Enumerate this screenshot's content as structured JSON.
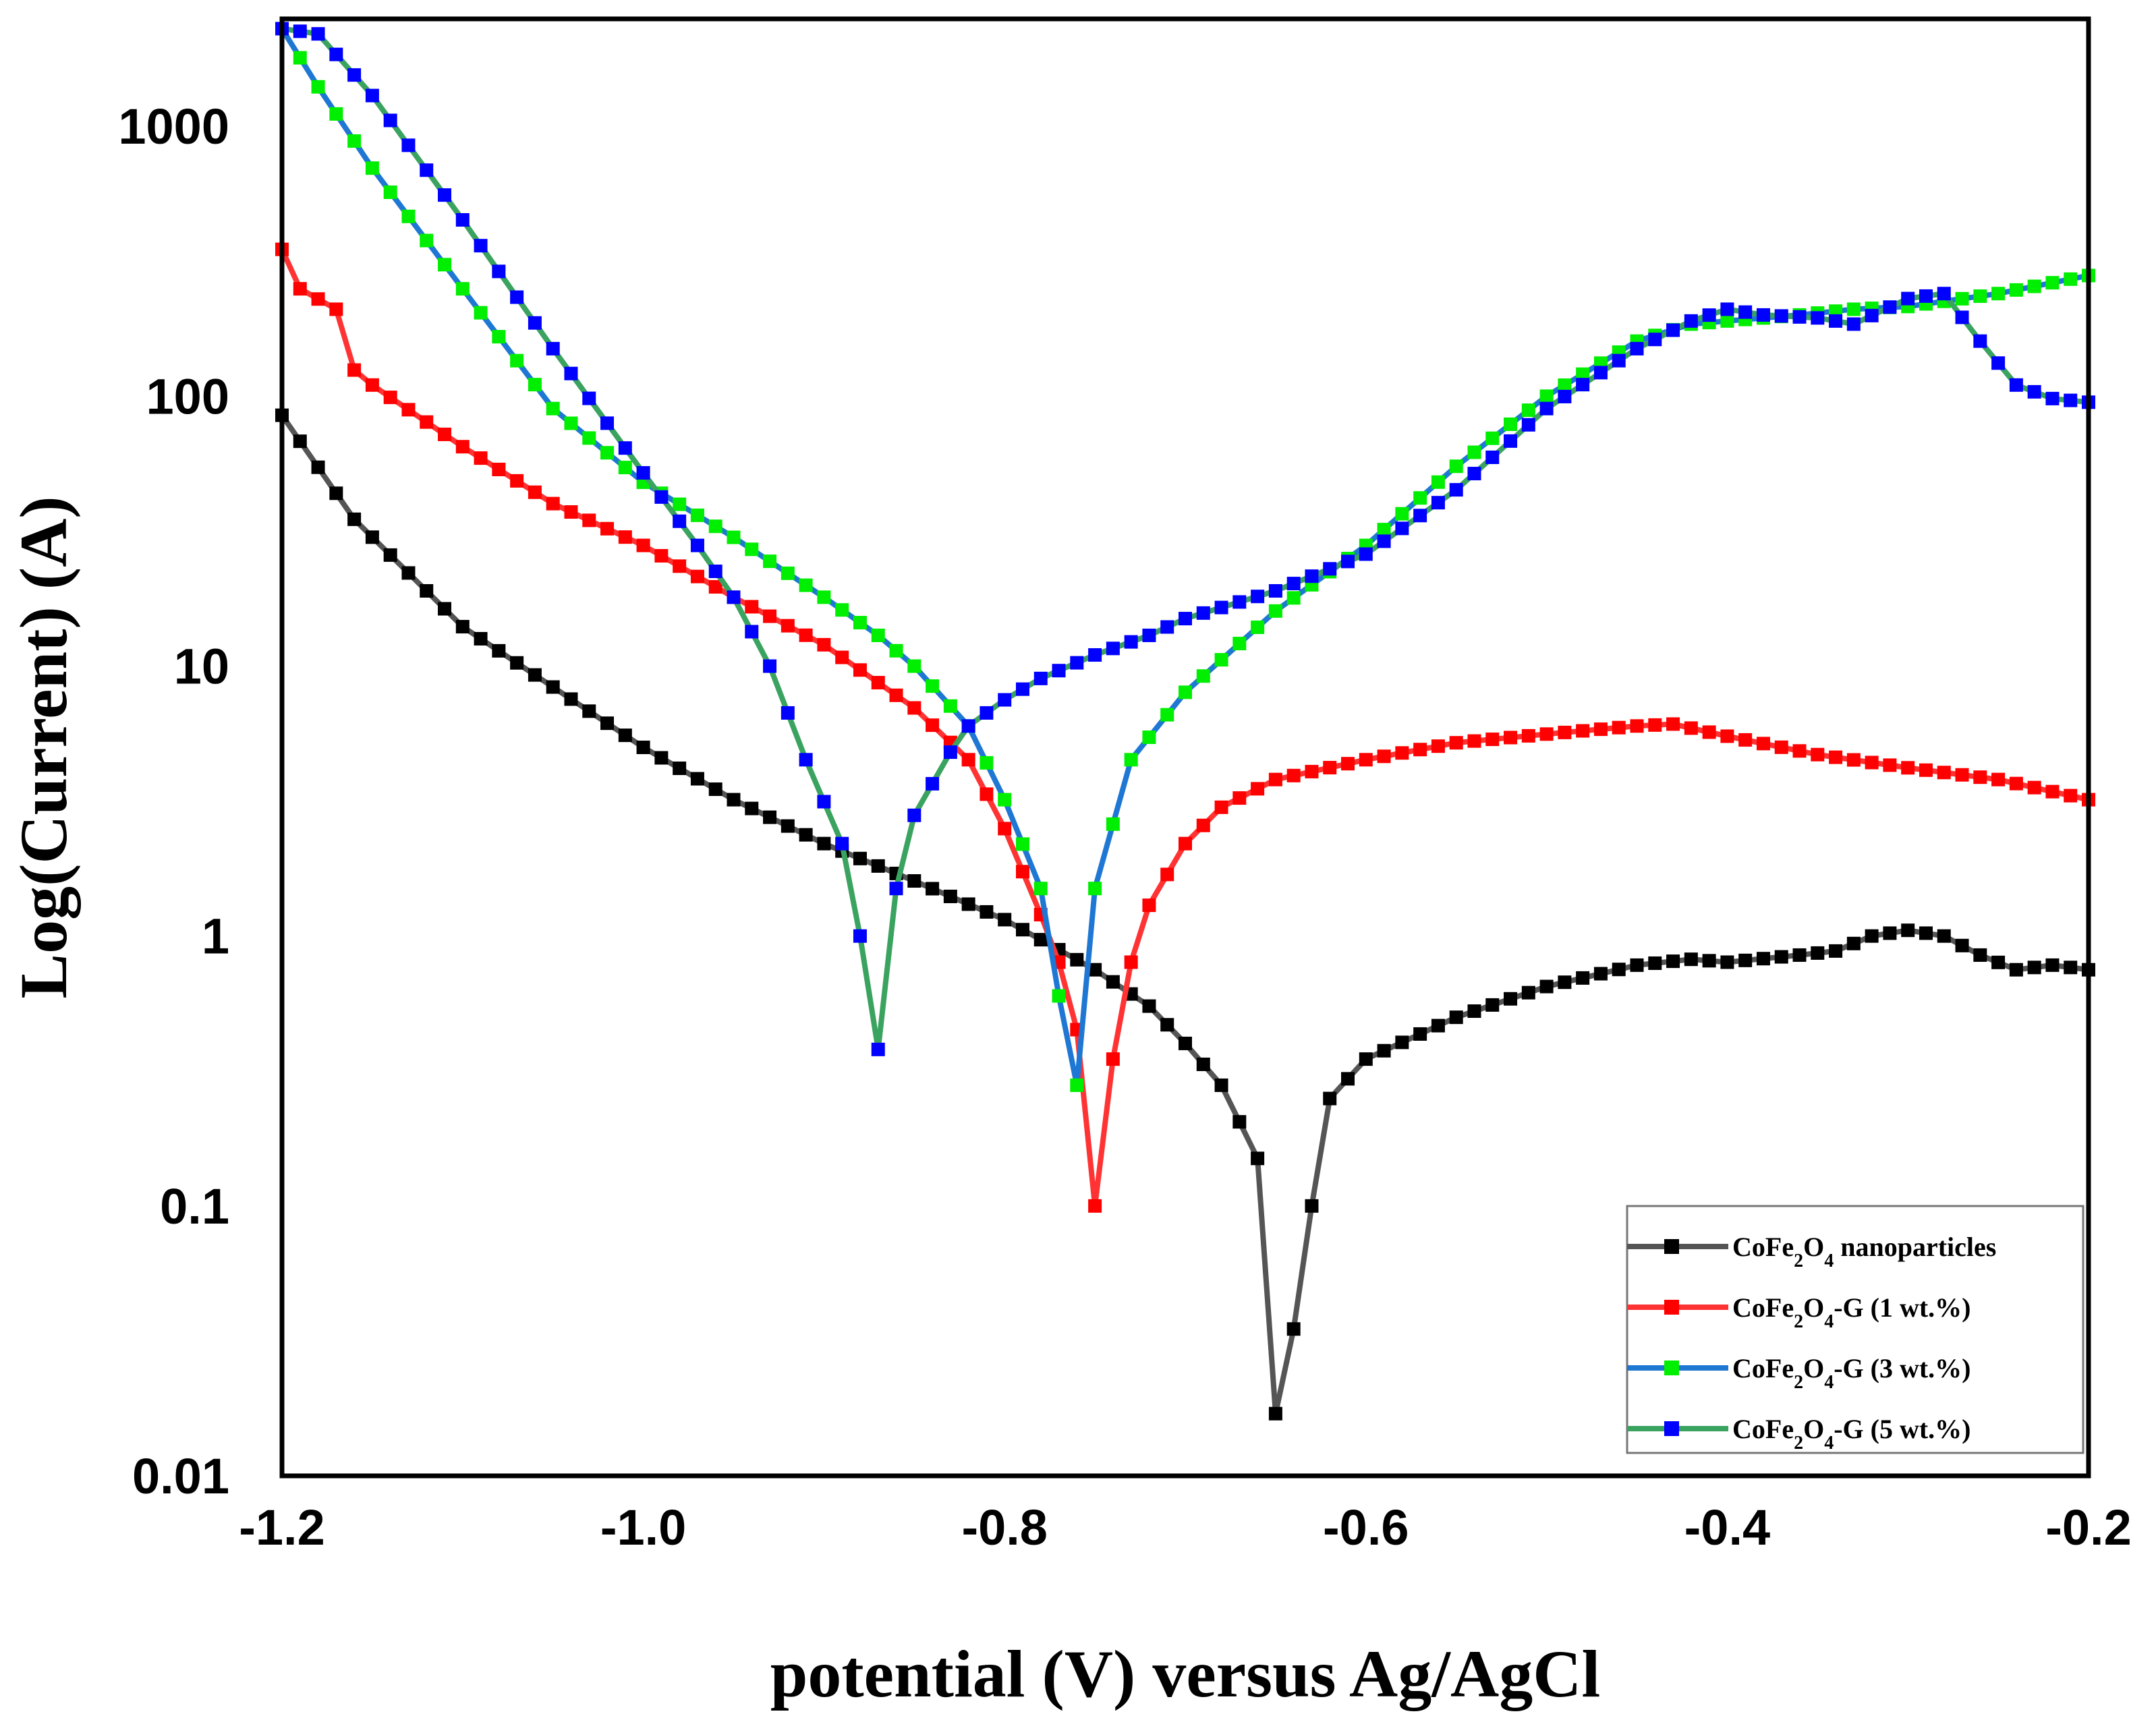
{
  "chart_data": {
    "type": "line",
    "title": "",
    "xlabel": "potential (V) versus Ag/AgCl",
    "ylabel": "Log(Current) (A)",
    "xlim": [
      -1.2,
      -0.2
    ],
    "ylim": [
      0.01,
      2500
    ],
    "yscale": "log",
    "xticks": [
      -1.2,
      -1.0,
      -0.8,
      -0.6,
      -0.4,
      -0.2
    ],
    "xtick_labels": [
      "-1.2",
      "-1.0",
      "-0.8",
      "-0.6",
      "-0.4",
      "-0.2"
    ],
    "yticks": [
      0.01,
      0.1,
      1,
      10,
      100,
      1000
    ],
    "ytick_labels": [
      "0.01",
      "0.1",
      "1",
      "10",
      "100",
      "1000"
    ],
    "legend_position": "bottom-right",
    "series": [
      {
        "name": "CoFe2O4 nanoparticles",
        "legend": {
          "pre": "CoFe",
          "sub1": "2",
          "mid": "O",
          "sub2": "4",
          "post": " nanoparticles"
        },
        "line_color": "#555555",
        "marker_color": "#000000",
        "x": [
          -1.2,
          -1.16,
          -1.1,
          -1.0,
          -0.95,
          -0.9,
          -0.85,
          -0.8,
          -0.75,
          -0.72,
          -0.7,
          -0.68,
          -0.66,
          -0.65,
          -0.64,
          -0.63,
          -0.62,
          -0.6,
          -0.55,
          -0.5,
          -0.45,
          -0.42,
          -0.4,
          -0.36,
          -0.34,
          -0.32,
          -0.3,
          -0.28,
          -0.26,
          -0.24,
          -0.22,
          -0.2
        ],
        "y": [
          85,
          35,
          14,
          5,
          3.2,
          2.2,
          1.6,
          1.15,
          0.75,
          0.55,
          0.4,
          0.28,
          0.15,
          0.017,
          0.035,
          0.1,
          0.25,
          0.35,
          0.5,
          0.65,
          0.78,
          0.82,
          0.8,
          0.85,
          0.88,
          1.0,
          1.05,
          1.0,
          0.85,
          0.75,
          0.78,
          0.75
        ]
      },
      {
        "name": "CoFe2O4-G (1 wt.%)",
        "legend": {
          "pre": "CoFe",
          "sub1": "2",
          "mid": "O",
          "sub2": "4",
          "post": "-G (1 wt.%)"
        },
        "line_color": "#ff3333",
        "marker_color": "#ff0000",
        "x": [
          -1.2,
          -1.19,
          -1.17,
          -1.16,
          -1.15,
          -1.1,
          -1.05,
          -1.0,
          -0.95,
          -0.9,
          -0.85,
          -0.82,
          -0.8,
          -0.78,
          -0.77,
          -0.76,
          -0.75,
          -0.74,
          -0.73,
          -0.72,
          -0.7,
          -0.68,
          -0.65,
          -0.6,
          -0.55,
          -0.5,
          -0.45,
          -0.43,
          -0.4,
          -0.35,
          -0.3,
          -0.25,
          -0.2
        ],
        "y": [
          350,
          250,
          210,
          125,
          110,
          65,
          40,
          28,
          18,
          12,
          7,
          4.5,
          2.5,
          1.2,
          0.8,
          0.45,
          0.1,
          0.35,
          0.8,
          1.3,
          2.2,
          3.0,
          3.8,
          4.5,
          5.2,
          5.6,
          6.0,
          6.1,
          5.5,
          4.7,
          4.2,
          3.8,
          3.2
        ]
      },
      {
        "name": "CoFe2O4-G (3 wt.%)",
        "legend": {
          "pre": "CoFe",
          "sub1": "2",
          "mid": "O",
          "sub2": "4",
          "post": "-G (3 wt.%)"
        },
        "line_color": "#1f77d4",
        "marker_color": "#00ee00",
        "x": [
          -1.2,
          -1.18,
          -1.15,
          -1.1,
          -1.05,
          -1.0,
          -0.95,
          -0.9,
          -0.87,
          -0.85,
          -0.82,
          -0.8,
          -0.78,
          -0.77,
          -0.76,
          -0.75,
          -0.73,
          -0.7,
          -0.65,
          -0.6,
          -0.55,
          -0.5,
          -0.45,
          -0.42,
          -0.4,
          -0.36,
          -0.33,
          -0.3,
          -0.25,
          -0.2
        ],
        "y": [
          2300,
          1400,
          700,
          250,
          90,
          48,
          30,
          18,
          13,
          10,
          6,
          3.2,
          1.5,
          0.6,
          0.28,
          1.5,
          4.5,
          8,
          16,
          28,
          55,
          100,
          160,
          185,
          190,
          200,
          210,
          215,
          240,
          280
        ]
      },
      {
        "name": "CoFe2O4-G (5 wt.%)",
        "legend": {
          "pre": "CoFe",
          "sub1": "2",
          "mid": "O",
          "sub2": "4",
          "post": "-G (5 wt.%)"
        },
        "line_color": "#3aa35f",
        "marker_color": "#0000ff",
        "x": [
          -1.2,
          -1.18,
          -1.15,
          -1.1,
          -1.05,
          -1.0,
          -0.97,
          -0.95,
          -0.93,
          -0.91,
          -0.89,
          -0.88,
          -0.87,
          -0.86,
          -0.85,
          -0.83,
          -0.82,
          -0.8,
          -0.78,
          -0.75,
          -0.72,
          -0.7,
          -0.65,
          -0.6,
          -0.55,
          -0.5,
          -0.45,
          -0.42,
          -0.4,
          -0.38,
          -0.35,
          -0.33,
          -0.3,
          -0.28,
          -0.26,
          -0.24,
          -0.22,
          -0.2
        ],
        "y": [
          2300,
          2200,
          1300,
          450,
          150,
          52,
          28,
          18,
          10,
          4.5,
          2.2,
          1.0,
          0.38,
          1.5,
          2.8,
          4.8,
          6,
          7.5,
          9,
          11,
          13,
          15,
          19,
          26,
          45,
          90,
          150,
          190,
          210,
          200,
          195,
          185,
          230,
          240,
          160,
          110,
          98,
          95
        ]
      }
    ]
  }
}
